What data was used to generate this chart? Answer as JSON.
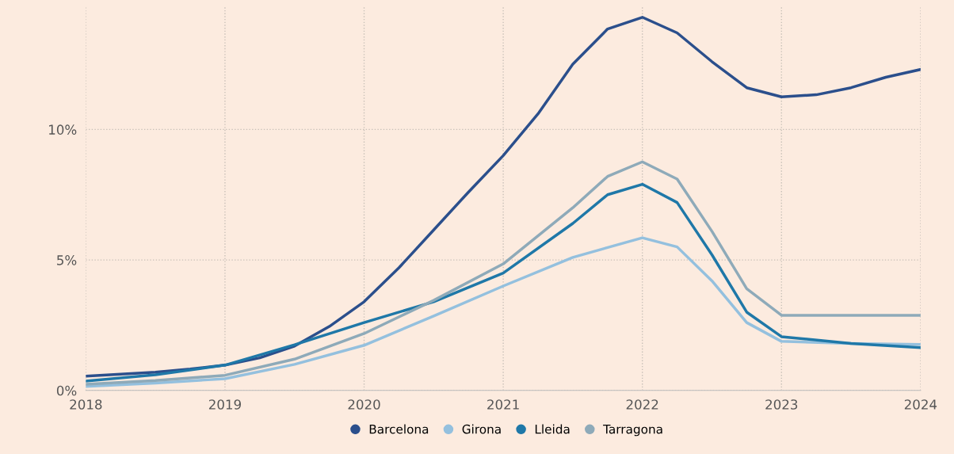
{
  "chart_data": {
    "type": "line",
    "series": [
      {
        "name": "Barcelona",
        "color": "#2b4f8c",
        "x": [
          2018,
          2018.25,
          2018.5,
          2018.75,
          2019,
          2019.25,
          2019.5,
          2019.75,
          2020,
          2020.25,
          2020.5,
          2020.75,
          2021,
          2021.25,
          2021.5,
          2021.75,
          2022,
          2022.25,
          2022.5,
          2022.75,
          2023,
          2023.25,
          2023.5,
          2023.75,
          2024
        ],
        "values": [
          0.55,
          0.62,
          0.7,
          0.82,
          0.97,
          1.25,
          1.7,
          2.45,
          3.4,
          4.7,
          6.15,
          7.6,
          9.0,
          10.6,
          12.5,
          13.85,
          14.3,
          13.7,
          12.6,
          11.6,
          11.25,
          11.33,
          11.6,
          12.0,
          12.3
        ]
      },
      {
        "name": "Girona",
        "color": "#94c0de",
        "x": [
          2018,
          2018.5,
          2019,
          2019.5,
          2020,
          2020.5,
          2021,
          2021.5,
          2022,
          2022.25,
          2022.5,
          2022.75,
          2023,
          2023.5,
          2024
        ],
        "values": [
          0.15,
          0.28,
          0.45,
          1.0,
          1.73,
          2.85,
          4.0,
          5.1,
          5.85,
          5.5,
          4.2,
          2.6,
          1.88,
          1.8,
          1.76
        ]
      },
      {
        "name": "Lleida",
        "color": "#1f78a8",
        "x": [
          2018,
          2018.5,
          2019,
          2019.5,
          2020,
          2020.5,
          2021,
          2021.5,
          2021.75,
          2022,
          2022.25,
          2022.5,
          2022.75,
          2023,
          2023.5,
          2024
        ],
        "values": [
          0.36,
          0.6,
          0.97,
          1.75,
          2.6,
          3.4,
          4.5,
          6.4,
          7.5,
          7.9,
          7.2,
          5.2,
          3.0,
          2.06,
          1.8,
          1.64
        ]
      },
      {
        "name": "Tarragona",
        "color": "#8eaab9",
        "x": [
          2018,
          2018.5,
          2019,
          2019.5,
          2020,
          2020.5,
          2021,
          2021.5,
          2021.75,
          2022,
          2022.25,
          2022.5,
          2022.75,
          2023,
          2023.5,
          2024
        ],
        "values": [
          0.24,
          0.38,
          0.58,
          1.2,
          2.18,
          3.45,
          4.85,
          7.0,
          8.2,
          8.76,
          8.1,
          6.1,
          3.9,
          2.88,
          2.88,
          2.88
        ]
      }
    ],
    "xlim": [
      2018,
      2024
    ],
    "xticks": [
      2018,
      2019,
      2020,
      2021,
      2022,
      2023,
      2024
    ],
    "ylim": [
      0,
      14.7
    ],
    "yticks": [
      {
        "value": 0,
        "label": "0%"
      },
      {
        "value": 5,
        "label": "5%"
      },
      {
        "value": 10,
        "label": "10%"
      }
    ],
    "grid": true,
    "legend": "bottom"
  }
}
